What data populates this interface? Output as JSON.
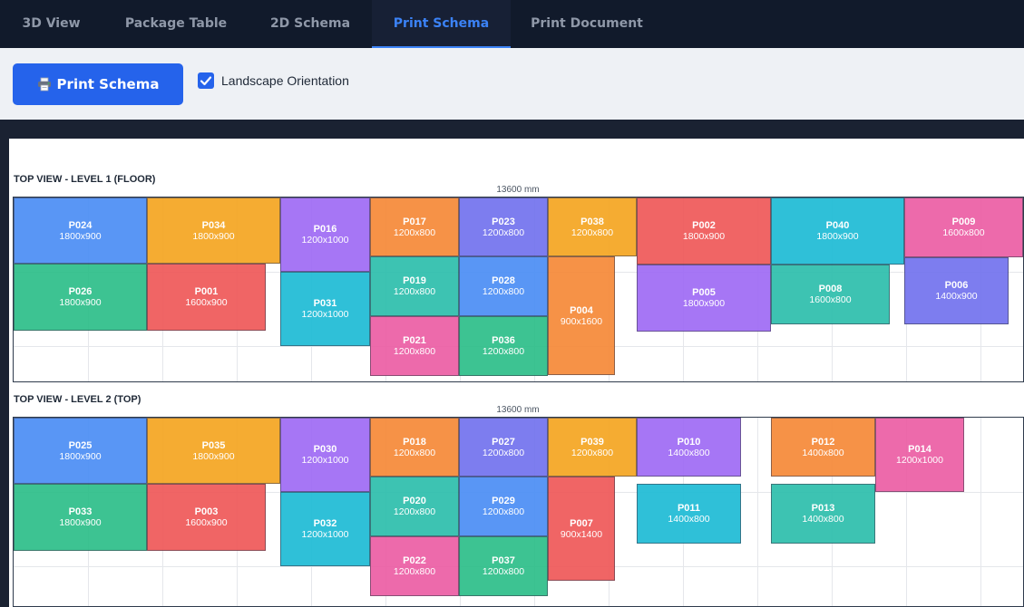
{
  "tabs": [
    {
      "label": "3D View",
      "active": false
    },
    {
      "label": "Package Table",
      "active": false
    },
    {
      "label": "2D Schema",
      "active": false
    },
    {
      "label": "Print Schema",
      "active": true
    },
    {
      "label": "Print Document",
      "active": false
    }
  ],
  "toolbar": {
    "print_label": "Print Schema",
    "print_icon": "printer-icon",
    "landscape_label": "Landscape Orientation",
    "landscape_checked": true
  },
  "colors": {
    "blue": "#4d8ff5",
    "orange": "#f5a623",
    "purple": "#a06cf5",
    "green": "#2fbf8a",
    "red": "#ef5a5a",
    "cyan": "#20bcd6",
    "teal": "#2fbfad",
    "indigo": "#7474ee",
    "pink": "#ec5fa5",
    "dorange": "#f68a3a",
    "accent": "#2563eb"
  },
  "levels": [
    {
      "title": "TOP VIEW - LEVEL 1 (FLOOR)",
      "length_label": "13600 mm",
      "packages": [
        {
          "id": "P024",
          "size": "1800x900",
          "color": "blue"
        },
        {
          "id": "P026",
          "size": "1800x900",
          "color": "green"
        },
        {
          "id": "P034",
          "size": "1800x900",
          "color": "orange"
        },
        {
          "id": "P001",
          "size": "1600x900",
          "color": "red"
        },
        {
          "id": "P016",
          "size": "1200x1000",
          "color": "purple"
        },
        {
          "id": "P031",
          "size": "1200x1000",
          "color": "cyan"
        },
        {
          "id": "P017",
          "size": "1200x800",
          "color": "dorange"
        },
        {
          "id": "P019",
          "size": "1200x800",
          "color": "teal"
        },
        {
          "id": "P021",
          "size": "1200x800",
          "color": "pink"
        },
        {
          "id": "P023",
          "size": "1200x800",
          "color": "indigo"
        },
        {
          "id": "P028",
          "size": "1200x800",
          "color": "blue"
        },
        {
          "id": "P036",
          "size": "1200x800",
          "color": "green"
        },
        {
          "id": "P038",
          "size": "1200x800",
          "color": "orange"
        },
        {
          "id": "P004",
          "size": "900x1600",
          "color": "dorange"
        },
        {
          "id": "P002",
          "size": "1800x900",
          "color": "red"
        },
        {
          "id": "P005",
          "size": "1800x900",
          "color": "purple"
        },
        {
          "id": "P040",
          "size": "1800x900",
          "color": "cyan"
        },
        {
          "id": "P008",
          "size": "1600x800",
          "color": "teal"
        },
        {
          "id": "P009",
          "size": "1600x800",
          "color": "pink"
        },
        {
          "id": "P006",
          "size": "1400x900",
          "color": "indigo"
        }
      ]
    },
    {
      "title": "TOP VIEW - LEVEL 2 (TOP)",
      "length_label": "13600 mm",
      "packages": [
        {
          "id": "P025",
          "size": "1800x900",
          "color": "blue"
        },
        {
          "id": "P033",
          "size": "1800x900",
          "color": "green"
        },
        {
          "id": "P035",
          "size": "1800x900",
          "color": "orange"
        },
        {
          "id": "P003",
          "size": "1600x900",
          "color": "red"
        },
        {
          "id": "P030",
          "size": "1200x1000",
          "color": "purple"
        },
        {
          "id": "P032",
          "size": "1200x1000",
          "color": "cyan"
        },
        {
          "id": "P018",
          "size": "1200x800",
          "color": "dorange"
        },
        {
          "id": "P020",
          "size": "1200x800",
          "color": "teal"
        },
        {
          "id": "P022",
          "size": "1200x800",
          "color": "pink"
        },
        {
          "id": "P027",
          "size": "1200x800",
          "color": "indigo"
        },
        {
          "id": "P029",
          "size": "1200x800",
          "color": "blue"
        },
        {
          "id": "P037",
          "size": "1200x800",
          "color": "green"
        },
        {
          "id": "P039",
          "size": "1200x800",
          "color": "orange"
        },
        {
          "id": "P007",
          "size": "900x1400",
          "color": "red"
        },
        {
          "id": "P010",
          "size": "1400x800",
          "color": "purple"
        },
        {
          "id": "P011",
          "size": "1400x800",
          "color": "cyan"
        },
        {
          "id": "P012",
          "size": "1400x800",
          "color": "dorange"
        },
        {
          "id": "P013",
          "size": "1400x800",
          "color": "teal"
        },
        {
          "id": "P014",
          "size": "1200x1000",
          "color": "pink"
        }
      ]
    }
  ]
}
